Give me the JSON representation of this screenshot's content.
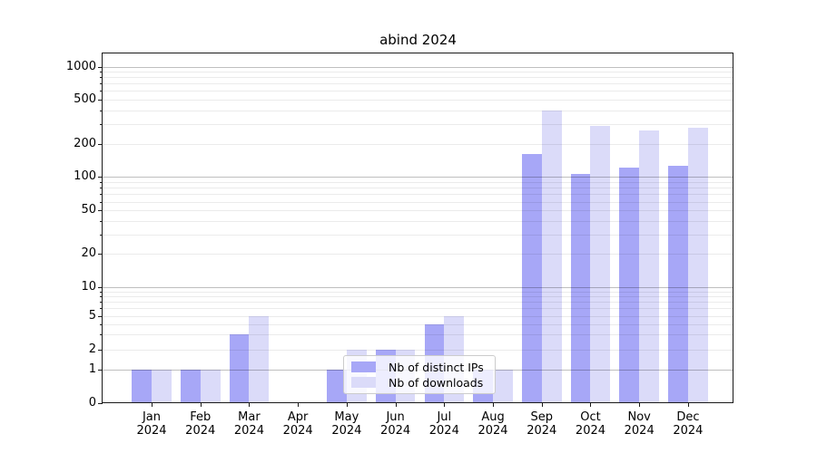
{
  "chart_data": {
    "type": "bar",
    "title": "abind 2024",
    "months": [
      "Jan",
      "Feb",
      "Mar",
      "Apr",
      "May",
      "Jun",
      "Jul",
      "Aug",
      "Sep",
      "Oct",
      "Nov",
      "Dec"
    ],
    "year": "2024",
    "series": [
      {
        "name": "Nb of distinct IPs",
        "color": "#a7a7f7",
        "values": [
          1,
          1,
          3,
          0,
          1,
          2,
          4,
          1,
          160,
          105,
          120,
          125
        ]
      },
      {
        "name": "Nb of downloads",
        "color": "#dbdbf9",
        "values": [
          1,
          1,
          5,
          0,
          2,
          2,
          5,
          1,
          400,
          290,
          265,
          280
        ]
      }
    ],
    "yscale": "symlog",
    "yticks": [
      0,
      1,
      2,
      5,
      10,
      20,
      50,
      100,
      200,
      500,
      1000
    ],
    "ylim": [
      0,
      1000
    ],
    "grid": "horizontal major and minor gridlines",
    "legend_position": "inside lower center"
  },
  "colors": {
    "bar_distinct_ips": "#a7a7f7",
    "bar_downloads": "#dbdbf9",
    "grid_major": "rgba(0,0,0,0.25)",
    "grid_minor": "rgba(0,0,0,0.08)",
    "spine": "#1a1a1a",
    "text": "#000000",
    "legend_border": "#cccccc",
    "legend_background": "rgba(255,255,255,0.8)"
  }
}
